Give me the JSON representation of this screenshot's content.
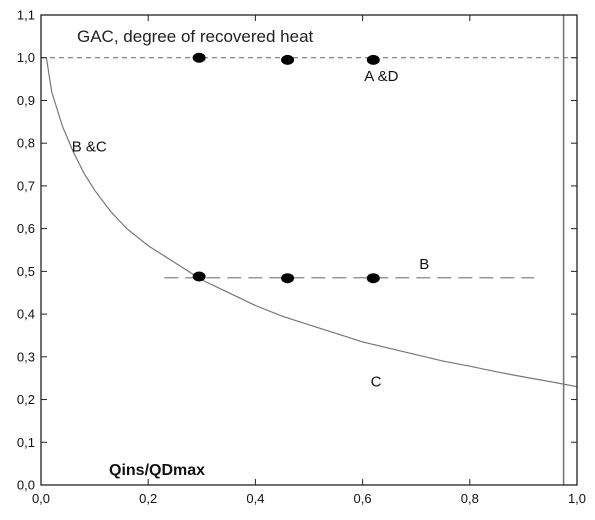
{
  "chart_data": {
    "type": "line",
    "title": "GAC, degree of recovered heat",
    "xlabel": "Qins/QDmax",
    "ylabel": "",
    "xlim": [
      0,
      1.0
    ],
    "ylim": [
      0,
      1.1
    ],
    "x_ticks": [
      0,
      0.2,
      0.4,
      0.6,
      0.8,
      1.0
    ],
    "x_tick_labels": [
      "0,0",
      "0,2",
      "0,4",
      "0,6",
      "0,8",
      "1,0"
    ],
    "y_ticks": [
      0,
      0.1,
      0.2,
      0.3,
      0.4,
      0.5,
      0.6,
      0.7,
      0.8,
      0.9,
      1.0,
      1.1
    ],
    "y_tick_labels": [
      "0,0",
      "0,1",
      "0,2",
      "0,3",
      "0,4",
      "0,5",
      "0,6",
      "0,7",
      "0,8",
      "0,9",
      "1,0",
      "1,1"
    ],
    "grid": false,
    "series": [
      {
        "style": "solid-curve",
        "color": "#777777",
        "points": [
          [
            0.01,
            1.0
          ],
          [
            0.02,
            0.92
          ],
          [
            0.04,
            0.84
          ],
          [
            0.06,
            0.78
          ],
          [
            0.08,
            0.73
          ],
          [
            0.1,
            0.69
          ],
          [
            0.13,
            0.64
          ],
          [
            0.16,
            0.6
          ],
          [
            0.2,
            0.56
          ],
          [
            0.25,
            0.52
          ],
          [
            0.3,
            0.48
          ],
          [
            0.35,
            0.45
          ],
          [
            0.4,
            0.42
          ],
          [
            0.45,
            0.395
          ],
          [
            0.5,
            0.375
          ],
          [
            0.55,
            0.355
          ],
          [
            0.6,
            0.335
          ],
          [
            0.65,
            0.32
          ],
          [
            0.7,
            0.305
          ],
          [
            0.75,
            0.29
          ],
          [
            0.8,
            0.278
          ],
          [
            0.85,
            0.265
          ],
          [
            0.9,
            0.253
          ],
          [
            0.95,
            0.242
          ],
          [
            1.0,
            0.23
          ]
        ]
      },
      {
        "style": "dashed-line",
        "color": "#777777",
        "points": [
          [
            0.0,
            1.0
          ],
          [
            1.0,
            1.0
          ]
        ]
      },
      {
        "style": "long-dashed-line",
        "color": "#777777",
        "points": [
          [
            0.23,
            0.485
          ],
          [
            0.92,
            0.485
          ]
        ]
      },
      {
        "style": "markers",
        "color": "#000000",
        "points": [
          [
            0.295,
            1.0
          ],
          [
            0.46,
            0.995
          ],
          [
            0.62,
            0.995
          ],
          [
            0.295,
            0.488
          ],
          [
            0.46,
            0.484
          ],
          [
            0.62,
            0.484
          ]
        ]
      },
      {
        "style": "vertical-line",
        "color": "#777777",
        "points": [
          [
            0.975,
            0.0
          ],
          [
            0.975,
            1.1
          ]
        ]
      }
    ],
    "annotations": [
      {
        "text": "A &D",
        "x": 0.635,
        "y": 0.945
      },
      {
        "text": "B &C",
        "x": 0.09,
        "y": 0.78
      },
      {
        "text": "B",
        "x": 0.715,
        "y": 0.505
      },
      {
        "text": "C",
        "x": 0.625,
        "y": 0.23
      }
    ]
  }
}
